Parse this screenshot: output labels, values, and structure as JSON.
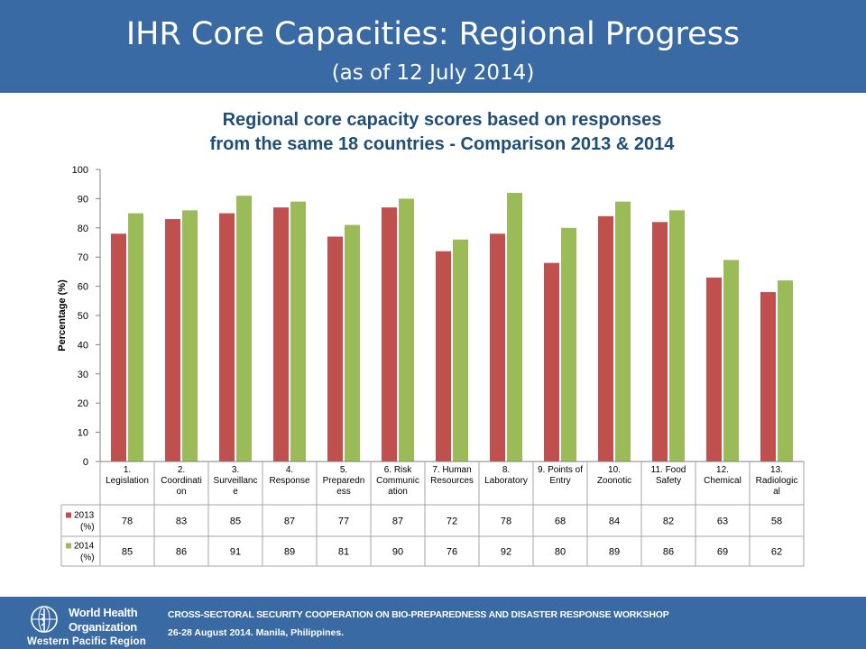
{
  "header": {
    "title": "IHR Core Capacities: Regional Progress",
    "subtitle": "(as of 12 July 2014)"
  },
  "footer": {
    "org_line1": "World Health",
    "org_line2": "Organization",
    "region": "Western Pacific Region",
    "workshop": "CROSS-SECTORAL SECURITY COOPERATION ON BIO-PREPAREDNESS AND DISASTER RESPONSE WORKSHOP",
    "dates": "26-28 August 2014. Manila, Philippines.",
    "emblem_icon": "who-emblem-icon"
  },
  "chart_data": {
    "type": "bar",
    "title_line1": "Regional core capacity scores based on responses",
    "title_line2": "from the same 18 countries - Comparison 2013 & 2014",
    "xlabel": "",
    "ylabel": "Percentage (%)",
    "ylim": [
      0,
      100
    ],
    "yticks": [
      0,
      10,
      20,
      30,
      40,
      50,
      60,
      70,
      80,
      90,
      100
    ],
    "grid": false,
    "legend": "data-table-rows",
    "categories": [
      [
        "1.",
        "Legislation"
      ],
      [
        "2.",
        "Coordinati",
        "on"
      ],
      [
        "3.",
        "Surveillanc",
        "e"
      ],
      [
        "4.",
        "Response"
      ],
      [
        "5.",
        "Preparedn",
        "ess"
      ],
      [
        "6. Risk",
        "Communic",
        "ation"
      ],
      [
        "7. Human",
        "Resources"
      ],
      [
        "8.",
        "Laboratory"
      ],
      [
        "9. Points of",
        "Entry"
      ],
      [
        "10.",
        "Zoonotic"
      ],
      [
        "11. Food",
        "Safety"
      ],
      [
        "12.",
        "Chemical"
      ],
      [
        "13.",
        "Radiologic",
        "al"
      ]
    ],
    "series": [
      {
        "name": [
          "2013",
          "(%)"
        ],
        "color": "#c0504d",
        "values": [
          78,
          83,
          85,
          87,
          77,
          87,
          72,
          78,
          68,
          84,
          82,
          63,
          58
        ]
      },
      {
        "name": [
          "2014",
          "(%)"
        ],
        "color": "#9bbb59",
        "values": [
          85,
          86,
          91,
          89,
          81,
          90,
          76,
          92,
          80,
          89,
          86,
          69,
          62
        ]
      }
    ]
  }
}
